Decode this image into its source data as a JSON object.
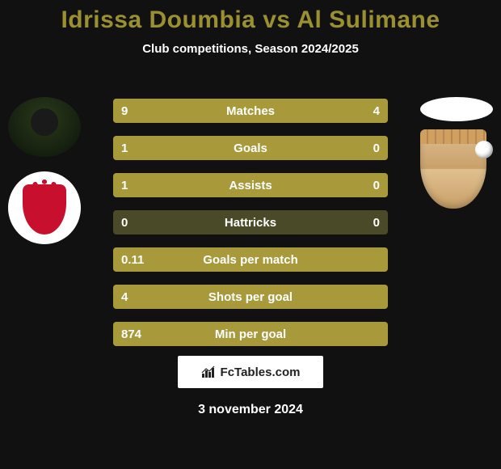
{
  "title": {
    "player1": "Idrissa Doumbia",
    "vs": "vs",
    "player2": "Al Sulimane"
  },
  "subtitle": "Club competitions, Season 2024/2025",
  "colors": {
    "accent": "#9a9030",
    "bar_bg": "#4a4a28",
    "bar_left": "#a89a3a",
    "bar_right": "#a89a3a",
    "text": "#ffffff",
    "background": "#111111"
  },
  "stats": [
    {
      "label": "Matches",
      "left_val": "9",
      "right_val": "4",
      "left_pct": 69,
      "right_pct": 31
    },
    {
      "label": "Goals",
      "left_val": "1",
      "right_val": "0",
      "left_pct": 100,
      "right_pct": 0
    },
    {
      "label": "Assists",
      "left_val": "1",
      "right_val": "0",
      "left_pct": 100,
      "right_pct": 0
    },
    {
      "label": "Hattricks",
      "left_val": "0",
      "right_val": "0",
      "left_pct": 0,
      "right_pct": 0
    },
    {
      "label": "Goals per match",
      "left_val": "0.11",
      "right_val": "",
      "left_pct": 100,
      "right_pct": 0
    },
    {
      "label": "Shots per goal",
      "left_val": "4",
      "right_val": "",
      "left_pct": 100,
      "right_pct": 0
    },
    {
      "label": "Min per goal",
      "left_val": "874",
      "right_val": "",
      "left_pct": 100,
      "right_pct": 0
    }
  ],
  "watermark": "FcTables.com",
  "date": "3 november 2024",
  "avatars": {
    "left_player": "player-photo",
    "left_club": "al-ahly-crest",
    "right_player": "player-photo-blank",
    "right_club": "club-crest-castle"
  }
}
